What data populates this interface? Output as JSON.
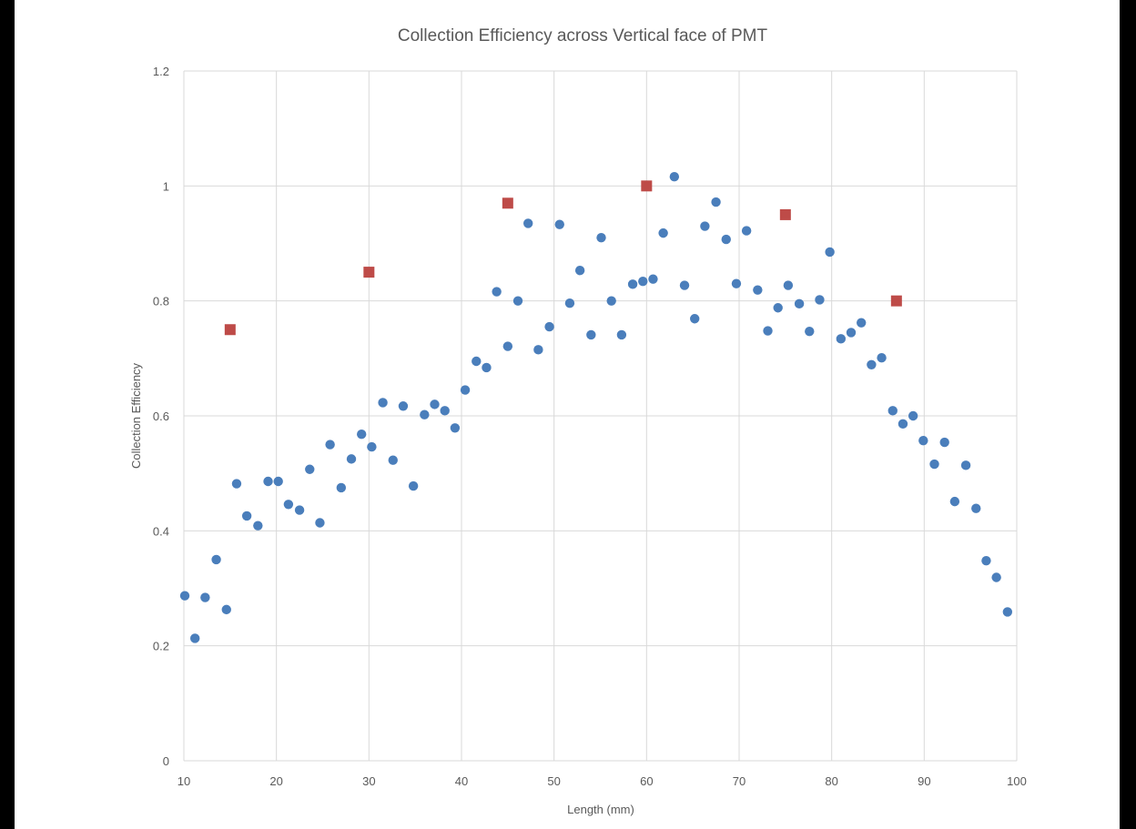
{
  "chart_data": {
    "type": "scatter",
    "title": "Collection Efficiency across Vertical face of PMT",
    "xlabel": "Length (mm)",
    "ylabel": "Collection Efficiency",
    "xlim": [
      10,
      100
    ],
    "ylim": [
      0,
      1.2
    ],
    "x_ticks": [
      "10",
      "20",
      "30",
      "40",
      "50",
      "60",
      "70",
      "80",
      "90",
      "100"
    ],
    "y_ticks": [
      "0",
      "0.2",
      "0.4",
      "0.6",
      "0.8",
      "1",
      "1.2"
    ],
    "grid": true,
    "legend": "none",
    "series": [
      {
        "color": "#4a7ebb",
        "marker": "circle",
        "points": [
          [
            10.1,
            0.287
          ],
          [
            11.2,
            0.213
          ],
          [
            12.3,
            0.284
          ],
          [
            13.5,
            0.35
          ],
          [
            14.6,
            0.263
          ],
          [
            15.7,
            0.482
          ],
          [
            16.8,
            0.426
          ],
          [
            18.0,
            0.409
          ],
          [
            19.1,
            0.486
          ],
          [
            20.2,
            0.486
          ],
          [
            21.3,
            0.446
          ],
          [
            22.5,
            0.436
          ],
          [
            23.6,
            0.507
          ],
          [
            24.7,
            0.414
          ],
          [
            25.8,
            0.55
          ],
          [
            27.0,
            0.475
          ],
          [
            28.1,
            0.525
          ],
          [
            29.2,
            0.568
          ],
          [
            30.3,
            0.546
          ],
          [
            31.5,
            0.623
          ],
          [
            32.6,
            0.523
          ],
          [
            33.7,
            0.617
          ],
          [
            34.8,
            0.478
          ],
          [
            36.0,
            0.602
          ],
          [
            37.1,
            0.62
          ],
          [
            38.2,
            0.609
          ],
          [
            39.3,
            0.579
          ],
          [
            40.4,
            0.645
          ],
          [
            41.6,
            0.695
          ],
          [
            42.7,
            0.684
          ],
          [
            43.8,
            0.816
          ],
          [
            45.0,
            0.721
          ],
          [
            46.1,
            0.8
          ],
          [
            47.2,
            0.935
          ],
          [
            48.3,
            0.715
          ],
          [
            49.5,
            0.755
          ],
          [
            50.6,
            0.933
          ],
          [
            51.7,
            0.796
          ],
          [
            52.8,
            0.853
          ],
          [
            54.0,
            0.741
          ],
          [
            55.1,
            0.91
          ],
          [
            56.2,
            0.8
          ],
          [
            57.3,
            0.741
          ],
          [
            58.5,
            0.829
          ],
          [
            59.6,
            0.834
          ],
          [
            60.7,
            0.838
          ],
          [
            61.8,
            0.918
          ],
          [
            63.0,
            1.016
          ],
          [
            64.1,
            0.827
          ],
          [
            65.2,
            0.769
          ],
          [
            66.3,
            0.93
          ],
          [
            67.5,
            0.972
          ],
          [
            68.6,
            0.907
          ],
          [
            69.7,
            0.83
          ],
          [
            70.8,
            0.922
          ],
          [
            72.0,
            0.819
          ],
          [
            73.1,
            0.748
          ],
          [
            74.2,
            0.788
          ],
          [
            75.3,
            0.827
          ],
          [
            76.5,
            0.795
          ],
          [
            77.6,
            0.747
          ],
          [
            78.7,
            0.802
          ],
          [
            79.8,
            0.885
          ],
          [
            81.0,
            0.734
          ],
          [
            82.1,
            0.745
          ],
          [
            83.2,
            0.762
          ],
          [
            84.3,
            0.689
          ],
          [
            85.4,
            0.701
          ],
          [
            86.6,
            0.609
          ],
          [
            87.7,
            0.586
          ],
          [
            88.8,
            0.6
          ],
          [
            89.9,
            0.557
          ],
          [
            91.1,
            0.516
          ],
          [
            92.2,
            0.554
          ],
          [
            93.3,
            0.451
          ],
          [
            94.5,
            0.514
          ],
          [
            95.6,
            0.439
          ],
          [
            96.7,
            0.348
          ],
          [
            97.8,
            0.319
          ],
          [
            99.0,
            0.259
          ]
        ]
      },
      {
        "color": "#be4b48",
        "marker": "square",
        "points": [
          [
            15,
            0.75
          ],
          [
            30,
            0.85
          ],
          [
            45,
            0.97
          ],
          [
            60,
            1.0
          ],
          [
            75,
            0.95
          ],
          [
            87,
            0.8
          ]
        ]
      }
    ]
  }
}
